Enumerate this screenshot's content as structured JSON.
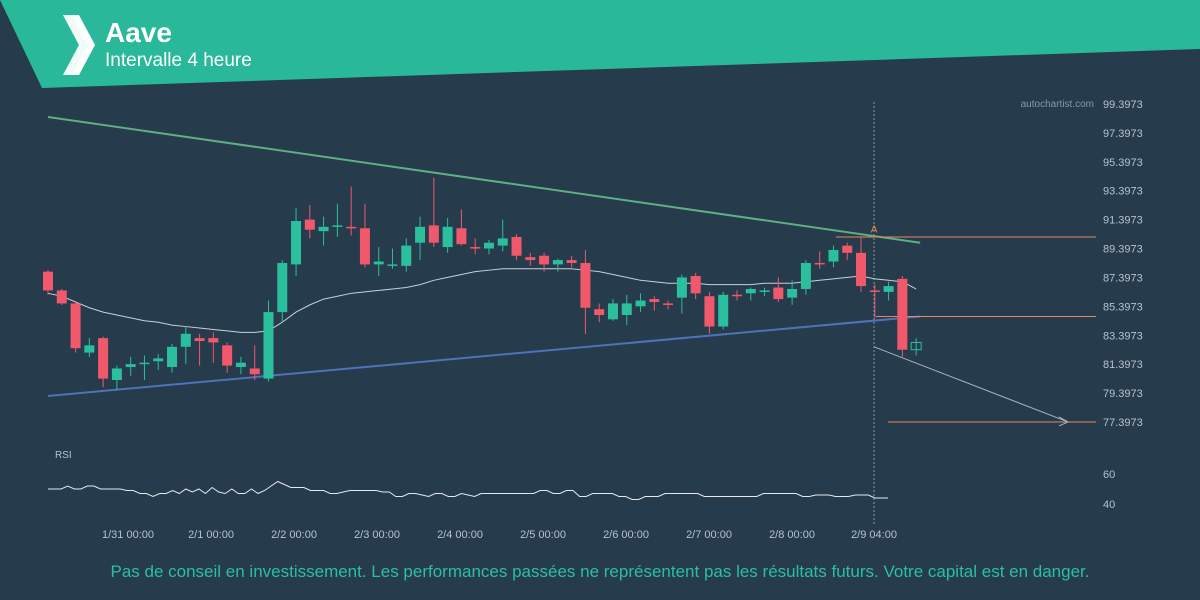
{
  "header": {
    "title": "Aave",
    "subtitle": "Intervalle 4 heure",
    "logo": "autochartist-logo",
    "bg_color": "#2ab89a"
  },
  "watermark": "autochartist.com",
  "disclaimer": "Pas de conseil en investissement. Les performances passées ne représentent pas les résultats futurs. Votre capital est en danger.",
  "colors": {
    "background": "#263b4c",
    "bull": "#2bbf9e",
    "bear": "#f0596b",
    "resistance": "#5fae84",
    "support": "#4f72b8",
    "moving_average": "#c9d1d8",
    "level": "#e58a5a",
    "forecast": "#aab4be",
    "rsi": "#e6e9ec"
  },
  "chart_data": {
    "type": "candlestick",
    "y_ticks": [
      "99.3973",
      "97.3973",
      "95.3973",
      "93.3973",
      "91.3973",
      "89.3973",
      "87.3973",
      "85.3973",
      "83.3973",
      "81.3973",
      "79.3973",
      "77.3973"
    ],
    "x_ticks": [
      "1/31 00:00",
      "2/1 00:00",
      "2/2 00:00",
      "2/3 00:00",
      "2/4 00:00",
      "2/5 00:00",
      "2/6 00:00",
      "2/7 00:00",
      "2/8 00:00",
      "2/9 04:00"
    ],
    "current_time": "2/9 04:00",
    "candles": [
      [
        87.8,
        87.9,
        86.2,
        86.5
      ],
      [
        86.5,
        86.6,
        85.5,
        85.6
      ],
      [
        85.6,
        85.7,
        82.2,
        82.5
      ],
      [
        82.2,
        83.2,
        81.9,
        82.7
      ],
      [
        83.2,
        83.3,
        79.8,
        80.4
      ],
      [
        80.3,
        81.3,
        79.6,
        81.1
      ],
      [
        81.2,
        81.9,
        80.6,
        81.4
      ],
      [
        81.4,
        82.0,
        80.3,
        81.5
      ],
      [
        81.6,
        82.1,
        81.0,
        81.8
      ],
      [
        81.2,
        82.8,
        80.8,
        82.6
      ],
      [
        82.6,
        84.0,
        81.4,
        83.5
      ],
      [
        83.2,
        83.5,
        81.3,
        83.0
      ],
      [
        83.2,
        83.6,
        81.5,
        82.9
      ],
      [
        82.7,
        82.9,
        80.8,
        81.3
      ],
      [
        81.2,
        81.9,
        80.7,
        81.5
      ],
      [
        81.1,
        82.7,
        80.3,
        80.7
      ],
      [
        80.4,
        85.8,
        80.2,
        85.0
      ],
      [
        85.0,
        88.6,
        84.3,
        88.4
      ],
      [
        88.3,
        92.2,
        87.5,
        91.3
      ],
      [
        91.4,
        92.4,
        90.1,
        90.7
      ],
      [
        90.6,
        91.6,
        89.6,
        90.9
      ],
      [
        90.9,
        92.5,
        90.2,
        91.0
      ],
      [
        90.9,
        93.7,
        90.3,
        90.8
      ],
      [
        90.8,
        92.5,
        88.1,
        88.3
      ],
      [
        88.3,
        89.5,
        87.5,
        88.5
      ],
      [
        88.2,
        89.4,
        88.0,
        88.3
      ],
      [
        88.2,
        90.1,
        87.8,
        89.6
      ],
      [
        89.8,
        91.6,
        88.6,
        90.9
      ],
      [
        91.0,
        94.3,
        89.5,
        89.8
      ],
      [
        89.5,
        91.5,
        89.1,
        90.9
      ],
      [
        90.8,
        92.1,
        89.6,
        89.7
      ],
      [
        89.5,
        90.1,
        89.0,
        89.4
      ],
      [
        89.4,
        90.0,
        89.0,
        89.8
      ],
      [
        89.6,
        91.4,
        89.2,
        90.1
      ],
      [
        90.2,
        90.4,
        88.6,
        88.9
      ],
      [
        88.8,
        89.1,
        88.2,
        88.6
      ],
      [
        88.9,
        89.1,
        87.8,
        88.3
      ],
      [
        88.3,
        88.7,
        87.8,
        88.6
      ],
      [
        88.6,
        88.9,
        88.1,
        88.4
      ],
      [
        88.4,
        89.3,
        83.5,
        85.3
      ],
      [
        85.2,
        85.6,
        84.3,
        84.8
      ],
      [
        84.5,
        85.9,
        84.4,
        85.6
      ],
      [
        84.8,
        86.2,
        84.1,
        85.6
      ],
      [
        85.4,
        86.3,
        85.0,
        85.8
      ],
      [
        85.9,
        86.1,
        85.1,
        85.7
      ],
      [
        85.6,
        85.8,
        85.2,
        85.5
      ],
      [
        86.0,
        87.6,
        84.9,
        87.4
      ],
      [
        87.5,
        87.7,
        85.9,
        86.3
      ],
      [
        86.1,
        86.4,
        83.5,
        84.0
      ],
      [
        84.0,
        86.4,
        83.8,
        86.2
      ],
      [
        86.2,
        86.5,
        85.8,
        86.1
      ],
      [
        86.3,
        86.7,
        85.8,
        86.6
      ],
      [
        86.4,
        86.7,
        86.1,
        86.5
      ],
      [
        86.7,
        87.4,
        85.7,
        85.9
      ],
      [
        86.0,
        87.2,
        85.5,
        86.6
      ],
      [
        86.6,
        88.6,
        86.2,
        88.4
      ],
      [
        88.4,
        89.2,
        88.0,
        88.3
      ],
      [
        88.5,
        89.6,
        88.1,
        89.3
      ],
      [
        89.6,
        89.8,
        88.6,
        89.1
      ],
      [
        89.1,
        90.2,
        86.4,
        86.8
      ],
      [
        86.5,
        86.9,
        84.6,
        86.4
      ],
      [
        86.4,
        87.1,
        85.8,
        86.8
      ],
      [
        87.3,
        87.5,
        81.9,
        82.4
      ],
      [
        82.4,
        83.2,
        82.0,
        82.9
      ]
    ],
    "moving_average": [
      86.3,
      86.1,
      85.7,
      85.3,
      85.0,
      84.8,
      84.6,
      84.4,
      84.3,
      84.1,
      84.0,
      83.9,
      83.8,
      83.7,
      83.6,
      83.6,
      83.7,
      84.3,
      85.0,
      85.5,
      85.9,
      86.1,
      86.3,
      86.4,
      86.5,
      86.6,
      86.7,
      86.9,
      87.2,
      87.4,
      87.6,
      87.8,
      87.9,
      88.0,
      88.0,
      88.0,
      88.0,
      88.0,
      88.0,
      87.9,
      87.8,
      87.6,
      87.4,
      87.2,
      87.1,
      87.0,
      87.0,
      87.0,
      86.9,
      86.9,
      86.9,
      86.9,
      87.0,
      87.0,
      87.0,
      87.1,
      87.2,
      87.3,
      87.4,
      87.5,
      87.3,
      87.2,
      87.1,
      86.6
    ],
    "resistance_line": {
      "from": [
        0,
        98.5
      ],
      "to": [
        63,
        89.8
      ]
    },
    "support_line": {
      "from": [
        0,
        79.2
      ],
      "to": [
        63,
        84.7
      ]
    },
    "pattern_point": {
      "label": "A",
      "index": 60,
      "value": 90.1
    },
    "levels": [
      90.2,
      84.7,
      77.4
    ],
    "forecast_target": 77.4,
    "rsi": {
      "label": "RSI",
      "y_ticks": [
        "60",
        "40"
      ],
      "values": [
        50,
        50,
        50,
        52,
        50,
        50,
        52,
        52,
        50,
        50,
        50,
        50,
        49,
        49,
        47,
        47,
        45,
        47,
        47,
        49,
        47,
        50,
        48,
        50,
        47,
        51,
        48,
        47,
        50,
        47,
        47,
        50,
        47,
        49,
        52,
        55,
        53,
        51,
        51,
        51,
        49,
        49,
        49,
        47,
        47,
        48,
        49,
        49,
        49,
        49,
        49,
        48,
        48,
        45,
        45,
        47,
        47,
        46,
        45,
        47,
        47,
        45,
        45,
        47,
        46,
        45,
        47,
        47,
        47,
        47,
        47,
        47,
        47,
        47,
        47,
        49,
        49,
        47,
        47,
        49,
        49,
        45,
        45,
        47,
        47,
        47,
        47,
        45,
        45,
        43,
        43,
        45,
        45,
        45,
        47,
        47,
        47,
        47,
        47,
        47,
        45,
        45,
        45,
        45,
        45,
        45,
        45,
        45,
        45,
        47,
        47,
        47,
        47,
        47,
        47,
        45,
        45,
        46,
        46,
        46,
        45,
        45,
        45,
        46,
        46,
        46,
        44,
        44,
        44
      ]
    }
  }
}
